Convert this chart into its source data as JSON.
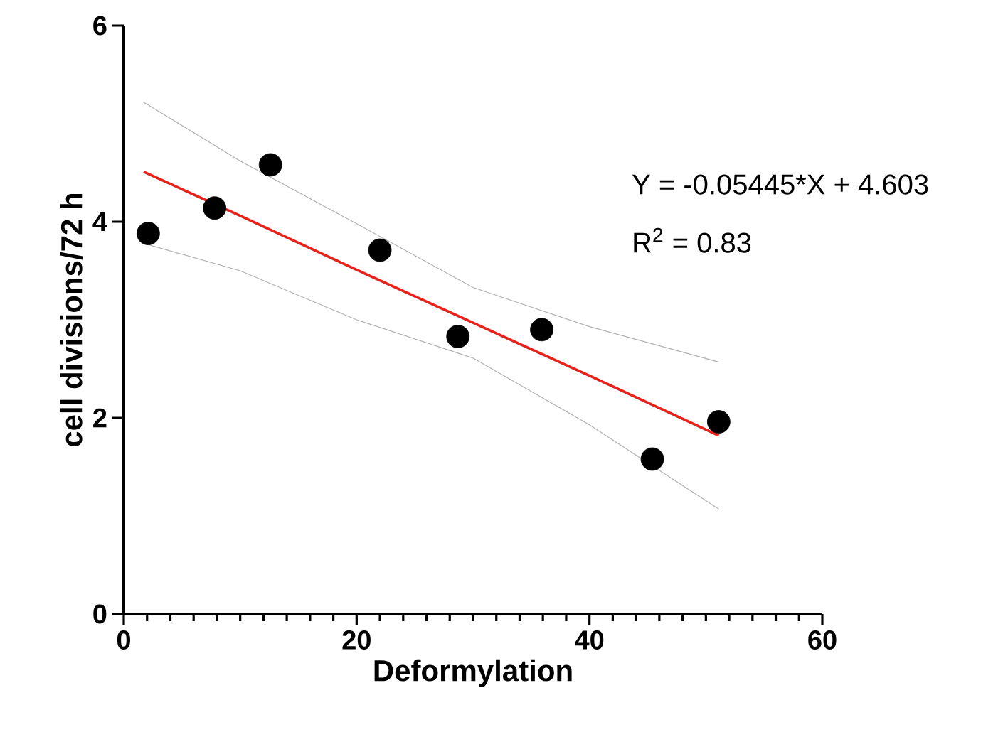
{
  "chart_data": {
    "type": "scatter",
    "xlabel": "Deformylation",
    "ylabel": "cell divisions/72 h",
    "xlim": [
      0,
      60
    ],
    "ylim": [
      0,
      6
    ],
    "xticks": [
      0,
      20,
      40,
      60
    ],
    "yticks": [
      0,
      2,
      4,
      6
    ],
    "grid": false,
    "series": [
      {
        "type": "line",
        "color": "#b2b2b2",
        "marker": "none",
        "x": [
          1.7,
          10,
          20,
          30,
          40,
          51.1
        ],
        "values": [
          3.78,
          3.5,
          3.0,
          2.61,
          1.93,
          1.07
        ]
      },
      {
        "type": "line",
        "color": "#b2b2b2",
        "marker": "none",
        "x": [
          1.7,
          10,
          20,
          30,
          40,
          51.1
        ],
        "values": [
          5.22,
          4.62,
          3.98,
          3.33,
          2.93,
          2.57
        ]
      },
      {
        "type": "line",
        "color": "#e8211b",
        "marker": "none",
        "x": [
          1.7,
          10,
          20,
          30,
          40,
          51.1
        ],
        "values": [
          4.51,
          4.06,
          3.51,
          2.97,
          2.43,
          1.82
        ]
      },
      {
        "color": "#000000",
        "marker": "circle",
        "x": [
          2.1,
          7.8,
          12.6,
          22.0,
          28.7,
          35.9,
          45.4,
          51.1
        ],
        "values": [
          3.88,
          4.14,
          4.58,
          3.71,
          2.83,
          2.9,
          1.58,
          1.96
        ]
      }
    ],
    "annotations": [
      "Y = -0.05445*X + 4.603",
      "R$^{2}$ = 0.83"
    ]
  }
}
